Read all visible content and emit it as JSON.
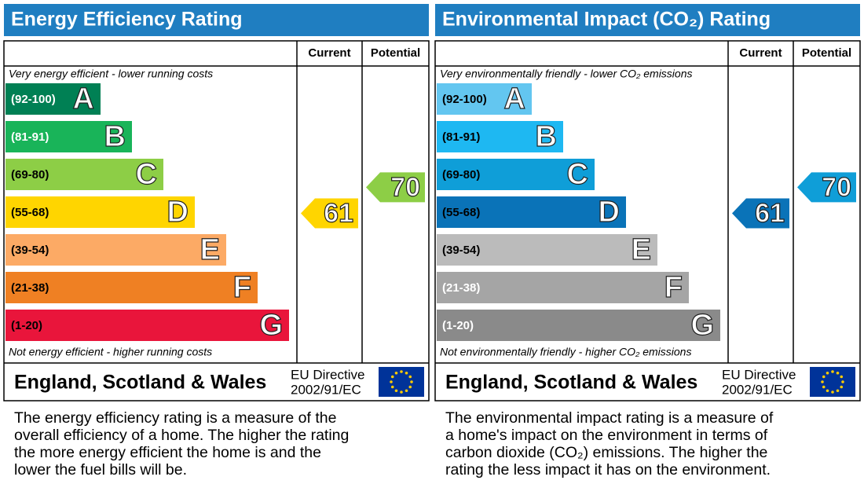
{
  "panels": [
    {
      "title": "Energy Efficiency Rating",
      "header": {
        "current": "Current",
        "potential": "Potential"
      },
      "top_note": "Very energy efficient - lower running costs",
      "bottom_note": "Not energy efficient - higher running costs",
      "bands": [
        {
          "range": "(92-100)",
          "letter": "A",
          "color": "#008054",
          "text_color": "#ffffff"
        },
        {
          "range": "(81-91)",
          "letter": "B",
          "color": "#19b459",
          "text_color": "#ffffff"
        },
        {
          "range": "(69-80)",
          "letter": "C",
          "color": "#8dce46",
          "text_color": "#000000"
        },
        {
          "range": "(55-68)",
          "letter": "D",
          "color": "#ffd500",
          "text_color": "#000000"
        },
        {
          "range": "(39-54)",
          "letter": "E",
          "color": "#fcaa65",
          "text_color": "#000000"
        },
        {
          "range": "(21-38)",
          "letter": "F",
          "color": "#ef8023",
          "text_color": "#000000"
        },
        {
          "range": "(1-20)",
          "letter": "G",
          "color": "#e9153b",
          "text_color": "#000000"
        }
      ],
      "current": 61,
      "potential": 70,
      "footer": {
        "region": "England, Scotland & Wales",
        "directive": "EU Directive",
        "code": "2002/91/EC"
      },
      "description": [
        "The energy efficiency rating is a measure of the",
        "overall efficiency of a home. The higher the rating",
        "the more energy efficient the home is and the",
        "lower the fuel bills will be."
      ]
    },
    {
      "title": "Environmental Impact (CO₂) Rating",
      "header": {
        "current": "Current",
        "potential": "Potential"
      },
      "top_note": "Very environmentally friendly - lower CO₂ emissions",
      "bottom_note": "Not environmentally friendly - higher CO₂ emissions",
      "bands": [
        {
          "range": "(92-100)",
          "letter": "A",
          "color": "#63c6f0",
          "text_color": "#000000"
        },
        {
          "range": "(81-91)",
          "letter": "B",
          "color": "#1eb8f2",
          "text_color": "#000000"
        },
        {
          "range": "(69-80)",
          "letter": "C",
          "color": "#0f9ed8",
          "text_color": "#000000"
        },
        {
          "range": "(55-68)",
          "letter": "D",
          "color": "#0a73b8",
          "text_color": "#000000"
        },
        {
          "range": "(39-54)",
          "letter": "E",
          "color": "#bbbbbb",
          "text_color": "#000000"
        },
        {
          "range": "(21-38)",
          "letter": "F",
          "color": "#a5a5a5",
          "text_color": "#ffffff"
        },
        {
          "range": "(1-20)",
          "letter": "G",
          "color": "#8a8a8a",
          "text_color": "#ffffff"
        }
      ],
      "current": 61,
      "potential": 70,
      "footer": {
        "region": "England, Scotland & Wales",
        "directive": "EU Directive",
        "code": "2002/91/EC"
      },
      "description": [
        "The environmental impact rating is a measure of",
        "a home's impact on the environment in terms of",
        "carbon dioxide (CO₂) emissions. The higher the",
        "rating the less impact it has on the environment."
      ]
    }
  ]
}
